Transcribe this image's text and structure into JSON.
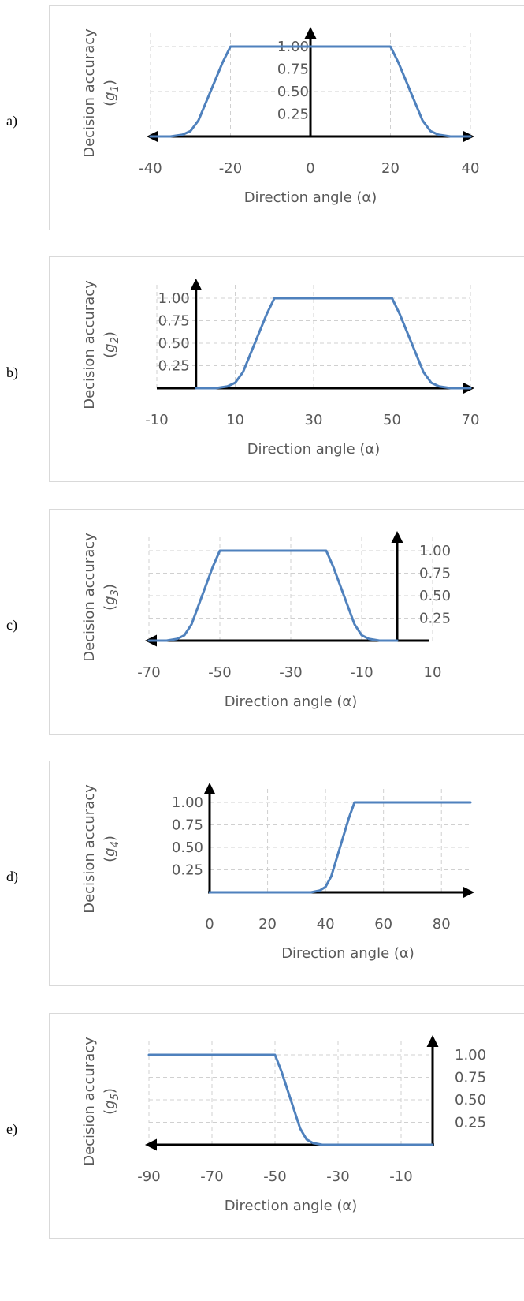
{
  "chart_data": [
    {
      "panel_label": "a)",
      "type": "line",
      "xlabel": "Direction angle (α)",
      "ylabel_line1": "Decision accuracy",
      "ylabel_sym": "g",
      "ylabel_sub": "1",
      "xlim": [
        -40,
        40
      ],
      "ylim": [
        0,
        1
      ],
      "x_ticks": [
        -40,
        -20,
        0,
        20,
        40
      ],
      "y_ticks": [
        "1.00",
        "0.75",
        "0.50",
        "0.25"
      ],
      "y_axis_at": 0,
      "x_arrow": "both",
      "gridlines": true,
      "series": [
        {
          "x": [
            -40,
            -35,
            -32,
            -30,
            -28,
            -25,
            -22,
            -20,
            20,
            22,
            25,
            28,
            30,
            32,
            35,
            40
          ],
          "y": [
            0,
            0,
            0.02,
            0.06,
            0.18,
            0.5,
            0.82,
            1,
            1,
            0.82,
            0.5,
            0.18,
            0.06,
            0.02,
            0,
            0
          ]
        }
      ],
      "color": "#4f81bd"
    },
    {
      "panel_label": "b)",
      "type": "line",
      "xlabel": "Direction angle (α)",
      "ylabel_line1": "Decision accuracy",
      "ylabel_sym": "g",
      "ylabel_sub": "2",
      "xlim": [
        -10,
        70
      ],
      "ylim": [
        0,
        1
      ],
      "x_ticks": [
        -10,
        10,
        30,
        50,
        70
      ],
      "y_ticks": [
        "1.00",
        "0.75",
        "0.50",
        "0.25"
      ],
      "y_axis_at": 0,
      "x_arrow": "right",
      "gridlines": true,
      "series": [
        {
          "x": [
            0,
            5,
            8,
            10,
            12,
            15,
            18,
            20,
            50,
            52,
            55,
            58,
            60,
            62,
            65,
            70
          ],
          "y": [
            0,
            0,
            0.02,
            0.06,
            0.18,
            0.5,
            0.82,
            1,
            1,
            0.82,
            0.5,
            0.18,
            0.06,
            0.02,
            0,
            0
          ]
        }
      ],
      "color": "#4f81bd"
    },
    {
      "panel_label": "c)",
      "type": "line",
      "xlabel": "Direction angle (α)",
      "ylabel_line1": "Decision accuracy",
      "ylabel_sym": "g",
      "ylabel_sub": "3",
      "xlim": [
        -70,
        10
      ],
      "ylim": [
        0,
        1
      ],
      "x_ticks": [
        -70,
        -50,
        -30,
        -10,
        10
      ],
      "y_ticks": [
        "1.00",
        "0.75",
        "0.50",
        "0.25"
      ],
      "y_axis_at": 0,
      "x_arrow": "left",
      "gridlines": true,
      "series": [
        {
          "x": [
            -70,
            -65,
            -62,
            -60,
            -58,
            -55,
            -52,
            -50,
            -20,
            -18,
            -15,
            -12,
            -10,
            -8,
            -5,
            0
          ],
          "y": [
            0,
            0,
            0.02,
            0.06,
            0.18,
            0.5,
            0.82,
            1,
            1,
            0.82,
            0.5,
            0.18,
            0.06,
            0.02,
            0,
            0
          ]
        }
      ],
      "color": "#4f81bd"
    },
    {
      "panel_label": "d)",
      "type": "line",
      "xlabel": "Direction angle (α)",
      "ylabel_line1": "Decision accuracy",
      "ylabel_sym": "g",
      "ylabel_sub": "4",
      "xlim": [
        0,
        90
      ],
      "ylim": [
        0,
        1
      ],
      "x_ticks": [
        0,
        20,
        40,
        60,
        80
      ],
      "y_ticks": [
        "1.00",
        "0.75",
        "0.50",
        "0.25"
      ],
      "y_axis_at": 0,
      "x_arrow": "right",
      "gridlines": true,
      "series": [
        {
          "x": [
            0,
            35,
            38,
            40,
            42,
            45,
            48,
            50,
            90
          ],
          "y": [
            0,
            0,
            0.02,
            0.06,
            0.18,
            0.5,
            0.82,
            1,
            1
          ]
        }
      ],
      "color": "#4f81bd"
    },
    {
      "panel_label": "e)",
      "type": "line",
      "xlabel": "Direction angle (α)",
      "ylabel_line1": "Decision accuracy",
      "ylabel_sym": "g",
      "ylabel_sub": "5",
      "xlim": [
        -90,
        0
      ],
      "ylim": [
        0,
        1
      ],
      "x_ticks": [
        -90,
        -70,
        -50,
        -30,
        -10
      ],
      "y_ticks": [
        "1.00",
        "0.75",
        "0.50",
        "0.25"
      ],
      "y_axis_at": 0,
      "x_arrow": "left",
      "gridlines": true,
      "series": [
        {
          "x": [
            -90,
            -50,
            -48,
            -45,
            -42,
            -40,
            -38,
            -35,
            0
          ],
          "y": [
            1,
            1,
            0.82,
            0.5,
            0.18,
            0.06,
            0.02,
            0,
            0
          ]
        }
      ],
      "color": "#4f81bd"
    }
  ]
}
